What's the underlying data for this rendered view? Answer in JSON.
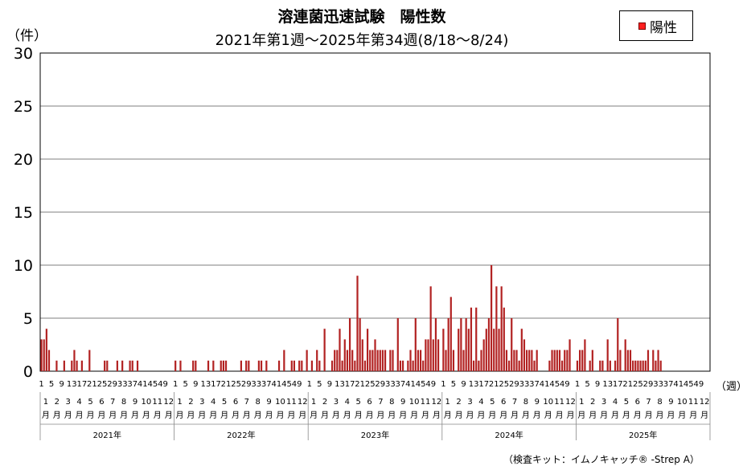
{
  "unit_label": "（件）",
  "week_unit_label": "（週）",
  "credit": "（検査キット：イムノキャッチ® -Strep A）",
  "colors": {
    "bar": "#b22222",
    "legend_swatch": "#ff2020"
  },
  "chart_data": {
    "type": "bar",
    "title": "溶連菌迅速試験　陽性数",
    "subtitle": "2021年第1週～2025年第34週(8/18～8/24)",
    "ylim": [
      0,
      30
    ],
    "yticks": [
      0,
      5,
      10,
      15,
      20,
      25,
      30
    ],
    "grid": true,
    "legend_position": "top-right",
    "series": [
      {
        "name": "陽性"
      }
    ],
    "week_tick_labels": [
      "1",
      "5",
      "9",
      "13",
      "17",
      "21",
      "25",
      "29",
      "33",
      "37",
      "41",
      "45",
      "49"
    ],
    "month_labels": [
      "1月",
      "2月",
      "3月",
      "4月",
      "5月",
      "6月",
      "7月",
      "8月",
      "9月",
      "10月",
      "11月",
      "12月"
    ],
    "years": [
      {
        "year": "2021年",
        "values": [
          3,
          3,
          4,
          2,
          0,
          0,
          1,
          0,
          0,
          1,
          0,
          0,
          1,
          2,
          1,
          0,
          1,
          0,
          0,
          2,
          0,
          0,
          0,
          0,
          0,
          1,
          1,
          0,
          0,
          0,
          1,
          0,
          1,
          0,
          0,
          1,
          1,
          0,
          1,
          0,
          0,
          0,
          0,
          0,
          0,
          0,
          0,
          0,
          0,
          0,
          0,
          0
        ]
      },
      {
        "year": "2022年",
        "values": [
          1,
          0,
          1,
          0,
          0,
          0,
          0,
          1,
          1,
          0,
          0,
          0,
          0,
          1,
          0,
          1,
          0,
          0,
          1,
          1,
          1,
          0,
          0,
          0,
          0,
          0,
          1,
          0,
          1,
          1,
          0,
          0,
          0,
          1,
          1,
          0,
          1,
          0,
          0,
          0,
          0,
          1,
          0,
          2,
          0,
          0,
          1,
          1,
          0,
          1,
          1,
          0,
          2
        ]
      },
      {
        "year": "2023年",
        "values": [
          0,
          1,
          0,
          2,
          1,
          0,
          4,
          0,
          0,
          1,
          2,
          2,
          4,
          1,
          3,
          2,
          5,
          2,
          1,
          9,
          5,
          3,
          1,
          4,
          2,
          2,
          3,
          2,
          2,
          2,
          2,
          0,
          2,
          2,
          0,
          5,
          1,
          1,
          0,
          1,
          2,
          1,
          5,
          2,
          2,
          1,
          3,
          3,
          8,
          3,
          5,
          3
        ]
      },
      {
        "year": "2024年",
        "values": [
          4,
          2,
          5,
          7,
          2,
          0,
          4,
          5,
          2,
          5,
          4,
          6,
          1,
          6,
          1,
          2,
          3,
          4,
          5,
          10,
          4,
          8,
          4,
          8,
          6,
          2,
          1,
          5,
          2,
          2,
          1,
          4,
          3,
          2,
          2,
          2,
          1,
          2,
          0,
          0,
          0,
          0,
          1,
          2,
          2,
          2,
          2,
          1,
          2,
          2,
          3,
          0
        ]
      },
      {
        "year": "2025年",
        "values": [
          1,
          2,
          2,
          3,
          0,
          1,
          2,
          0,
          0,
          1,
          1,
          0,
          3,
          1,
          0,
          1,
          5,
          2,
          0,
          3,
          2,
          2,
          1,
          1,
          1,
          1,
          1,
          1,
          2,
          0,
          2,
          1,
          2,
          1
        ]
      }
    ]
  }
}
